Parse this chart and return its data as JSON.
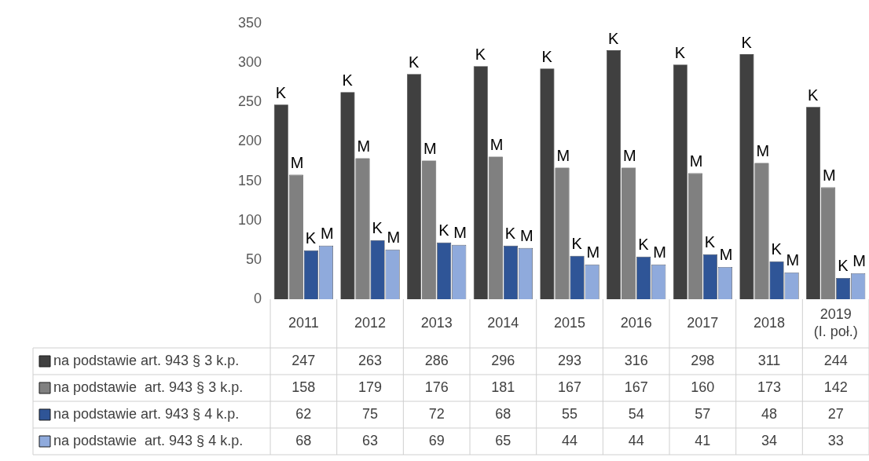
{
  "chart_data": {
    "type": "bar",
    "categories": [
      "2011",
      "2012",
      "2013",
      "2014",
      "2015",
      "2016",
      "2017",
      "2018",
      "2019 (I. poł.)"
    ],
    "series": [
      {
        "name": "na podstawie art. 943 § 3 k.p.",
        "color": "#404040",
        "values": [
          247,
          263,
          286,
          296,
          293,
          316,
          298,
          311,
          244
        ]
      },
      {
        "name": "na podstawie  art. 943 § 3 k.p.",
        "color": "#808080",
        "values": [
          158,
          179,
          176,
          181,
          167,
          167,
          160,
          173,
          142
        ]
      },
      {
        "name": "na podstawie art. 943 § 4 k.p.",
        "color": "#2f5597",
        "values": [
          62,
          75,
          72,
          68,
          55,
          54,
          57,
          48,
          27
        ]
      },
      {
        "name": "na podstawie  art. 943 § 4 k.p.",
        "color": "#8faadc",
        "values": [
          68,
          63,
          69,
          65,
          44,
          44,
          41,
          34,
          33
        ]
      }
    ],
    "ylim": [
      0,
      350
    ],
    "yticks": [
      0,
      50,
      100,
      150,
      200,
      250,
      300,
      350
    ],
    "grid": false,
    "legend": "bottom",
    "data_labels": true,
    "annotations": [
      "K",
      "M",
      "K",
      "M",
      "K",
      "M",
      "K",
      "M",
      "K",
      "M",
      "K",
      "M",
      "K",
      "M",
      "K",
      "M",
      "K",
      "M",
      "K",
      "M",
      "K",
      "M",
      "K",
      "M",
      "K",
      "M",
      "K",
      "M",
      "K",
      "M",
      "K",
      "M",
      "K",
      "M",
      "K",
      "M"
    ]
  }
}
